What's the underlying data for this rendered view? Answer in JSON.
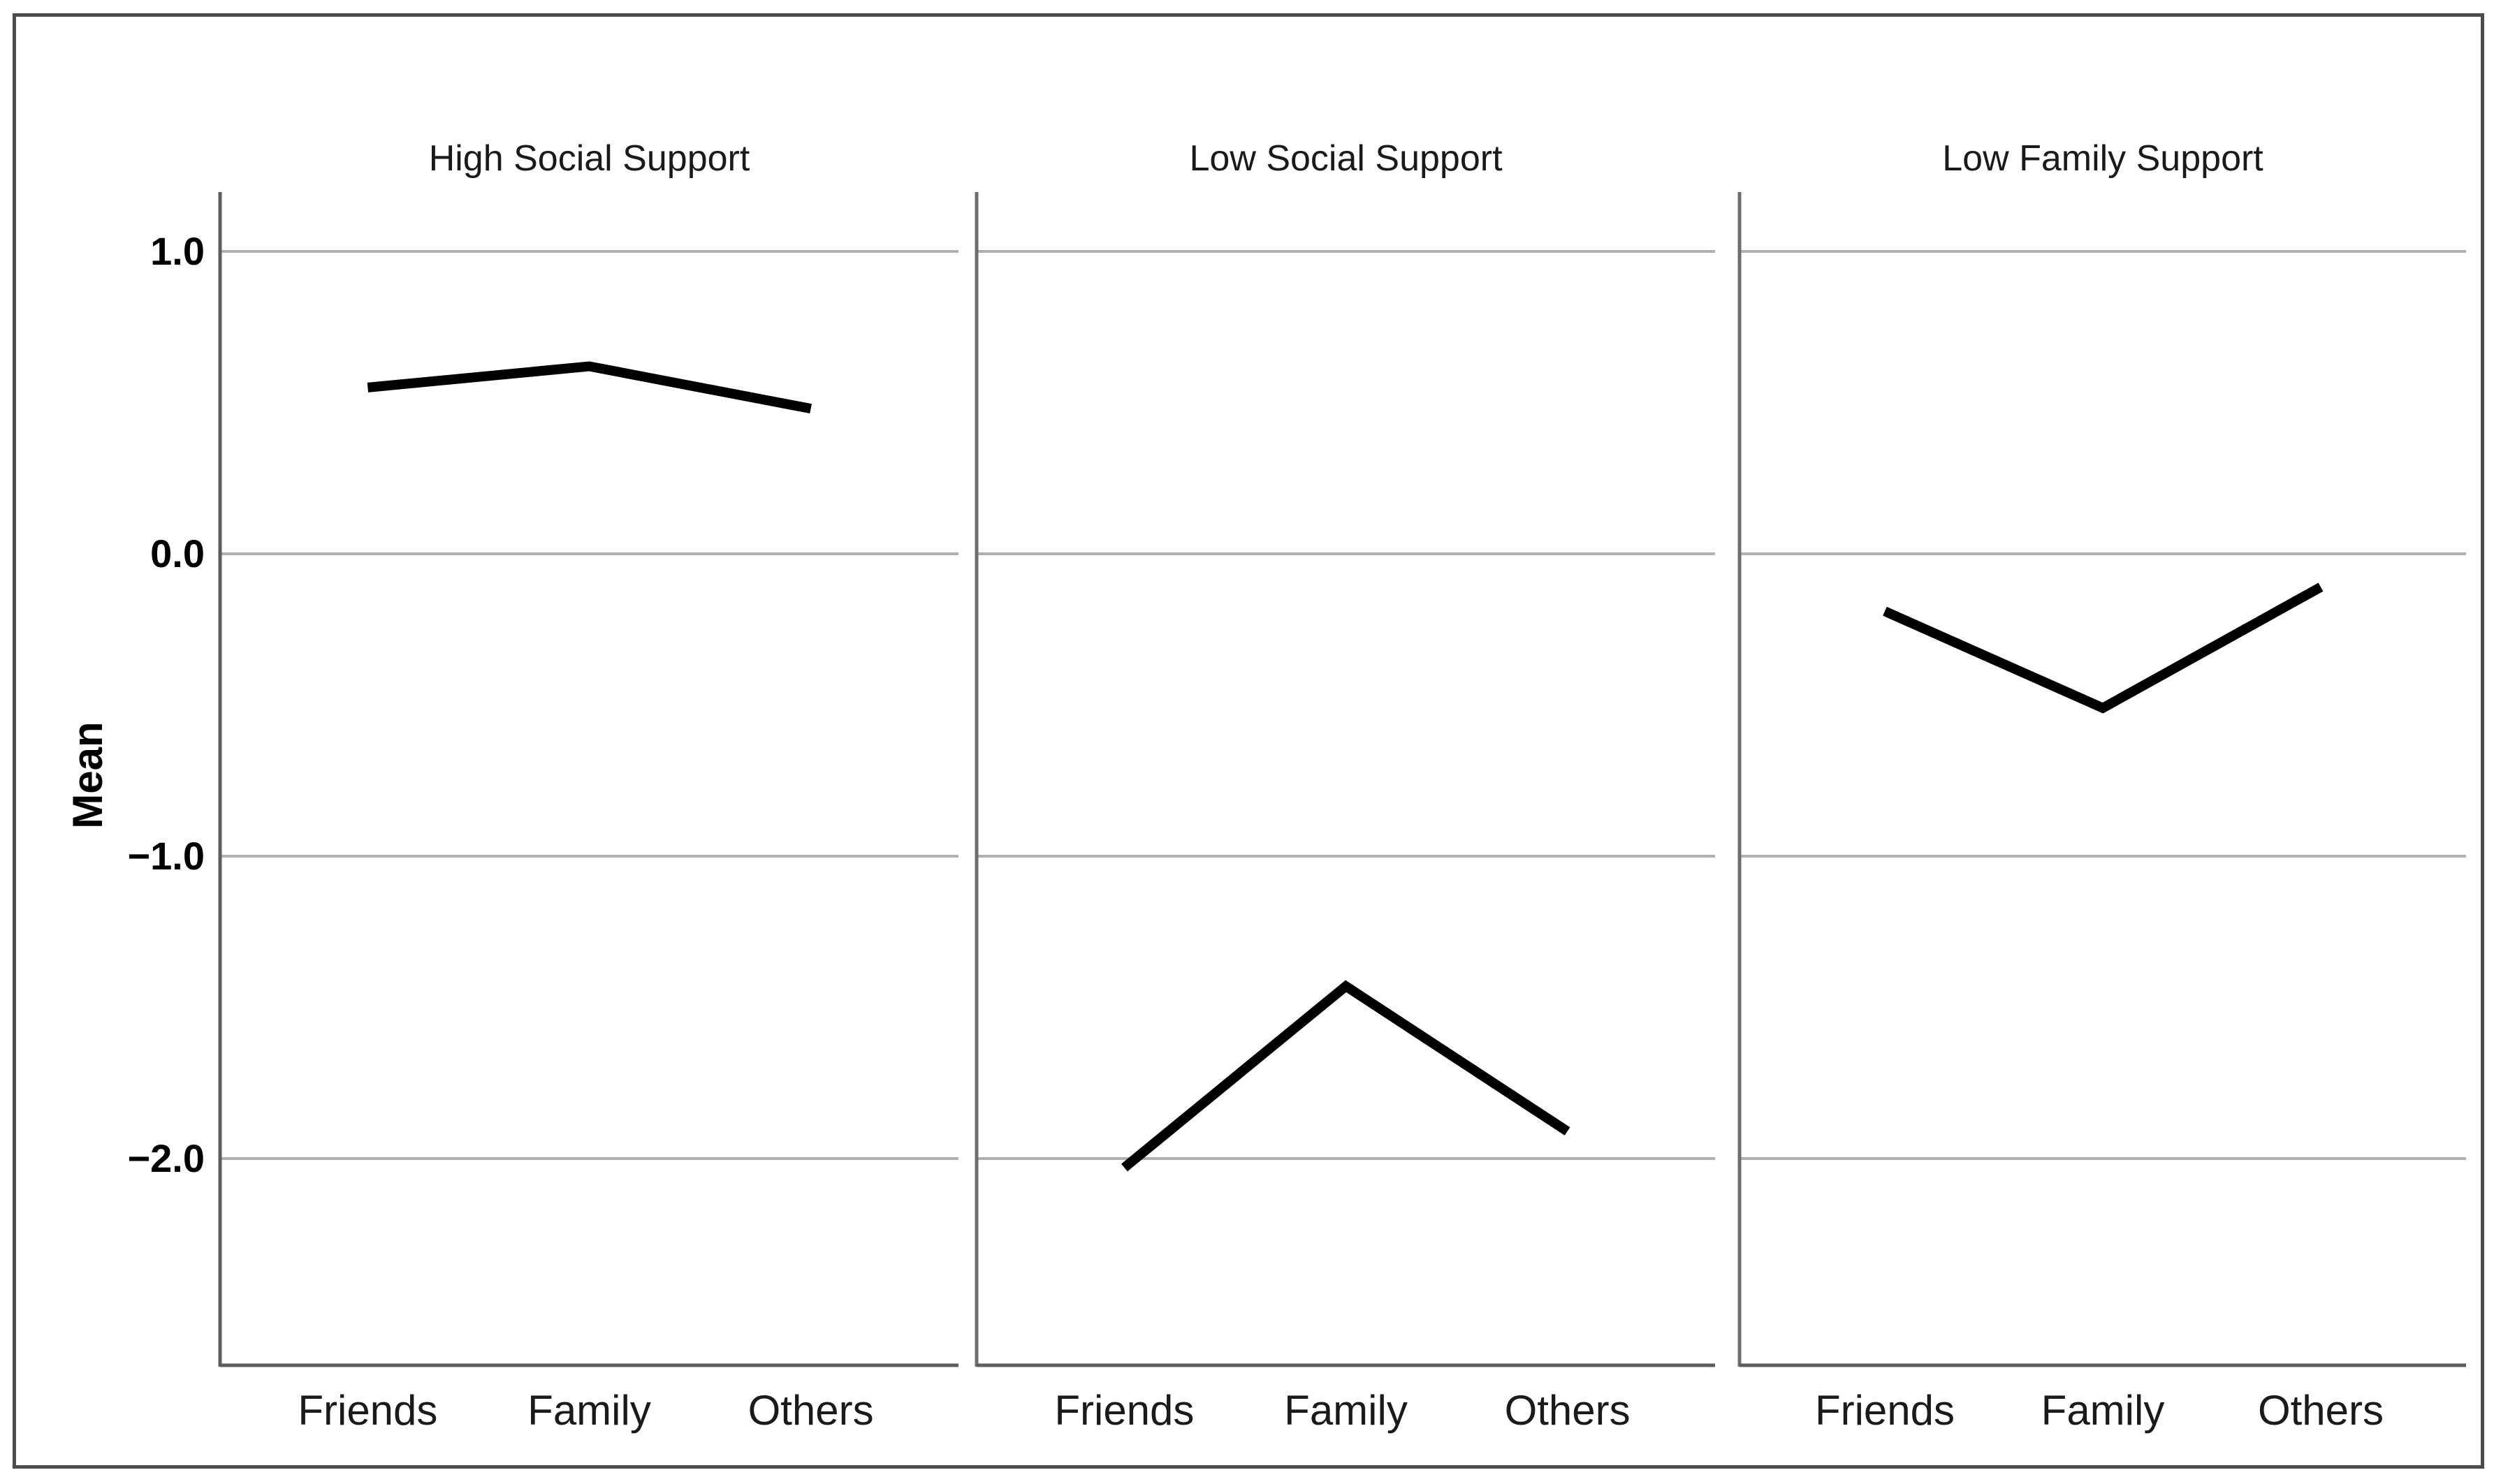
{
  "chart_data": {
    "type": "line",
    "categories": [
      "Friends",
      "Family",
      "Others"
    ],
    "panels": [
      {
        "title": "High Social Support",
        "values": [
          0.55,
          0.62,
          0.48
        ]
      },
      {
        "title": "Low Social Support",
        "values": [
          -2.03,
          -1.43,
          -1.91
        ]
      },
      {
        "title": "Low Family Support",
        "values": [
          -0.19,
          -0.51,
          -0.11
        ]
      }
    ],
    "xlabel": "",
    "ylabel": "Mean",
    "yticks": [
      1.0,
      0.0,
      -1.0,
      -2.0
    ],
    "ytick_labels": [
      "1.0",
      "0.0",
      "−1.0",
      "−2.0"
    ],
    "ylim": [
      -2.68,
      1.2
    ],
    "grid": true,
    "legend": "none",
    "colors": {
      "series_line": "#000000",
      "gridline": "#b0b0b0",
      "axis": "#5d5d5d",
      "panel_separator": "#6e6e6e",
      "figure_border": "#4c4c4c",
      "text": "#1a1a1a",
      "background": "#ffffff"
    }
  }
}
